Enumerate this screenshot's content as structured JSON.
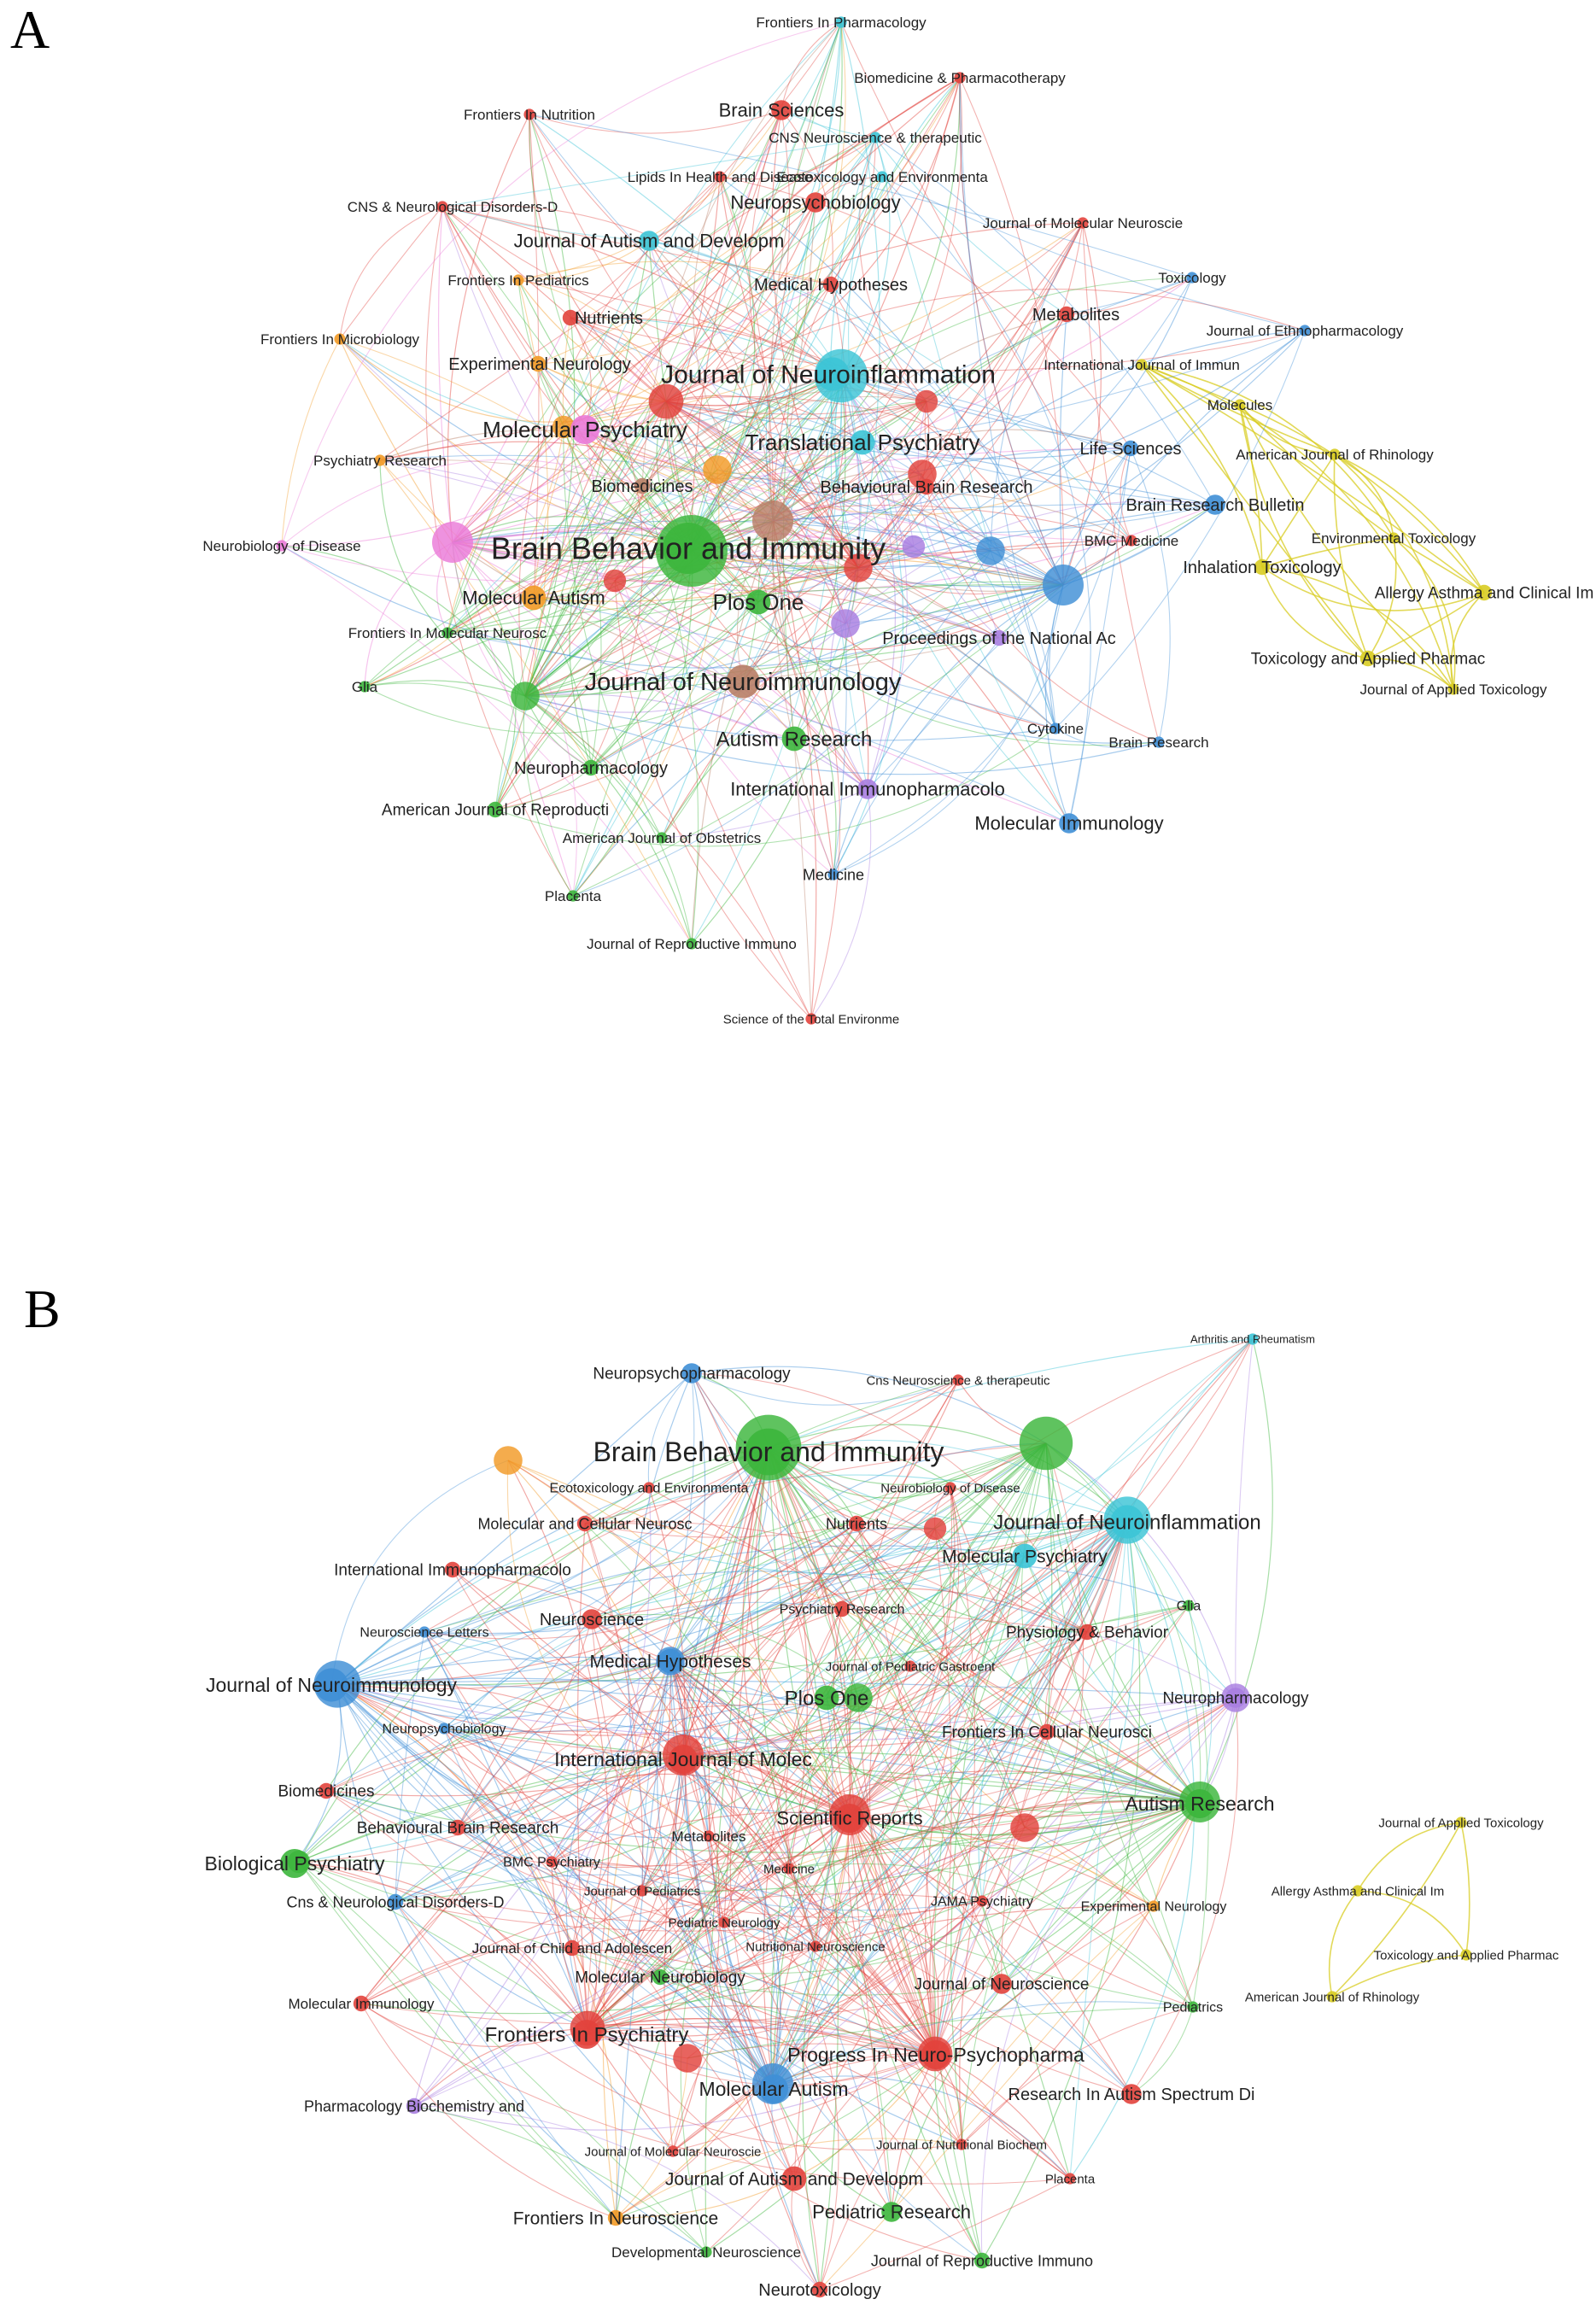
{
  "panels": [
    {
      "letter": "A",
      "nodes": [
        {
          "label": "Frontiers In Pharmacology",
          "c": "cyan",
          "w": 1
        },
        {
          "label": "Biomedicine & Pharmacotherapy",
          "c": "red",
          "w": 1
        },
        {
          "label": "Frontiers In Nutrition",
          "c": "red",
          "w": 1
        },
        {
          "label": "Brain Sciences",
          "c": "red",
          "w": 3
        },
        {
          "label": "CNS Neuroscience & therapeutic",
          "c": "cyan",
          "w": 1
        },
        {
          "label": "Lipids In Health and Disease",
          "c": "red",
          "w": 1
        },
        {
          "label": "Ecotoxicology and Environmenta",
          "c": "cyan",
          "w": 1
        },
        {
          "label": "CNS & Neurological Disorders-D",
          "c": "red",
          "w": 1
        },
        {
          "label": "Neuropsychobiology",
          "c": "red",
          "w": 3
        },
        {
          "label": "Journal of Molecular Neuroscie",
          "c": "red",
          "w": 1
        },
        {
          "label": "Journal of Autism and Developm",
          "c": "cyan",
          "w": 3
        },
        {
          "label": "Frontiers In Pediatrics",
          "c": "orange",
          "w": 1
        },
        {
          "label": "Medical Hypotheses",
          "c": "red",
          "w": 2
        },
        {
          "label": "Toxicology",
          "c": "blue",
          "w": 1
        },
        {
          "label": "Nutrients",
          "c": "red",
          "w": 2
        },
        {
          "label": "Metabolites",
          "c": "red",
          "w": 2
        },
        {
          "label": "Journal of Ethnopharmacology",
          "c": "blue",
          "w": 1
        },
        {
          "label": "Frontiers In Microbiology",
          "c": "orange",
          "w": 1
        },
        {
          "label": "Experimental Neurology",
          "c": "orange",
          "w": 2
        },
        {
          "label": "Journal of Neuroinflammation",
          "c": "cyan",
          "w": 6
        },
        {
          "label": "International Journal of Immun",
          "c": "yellow",
          "w": 1
        },
        {
          "label": "Molecules",
          "c": "yellow",
          "w": 1
        },
        {
          "label": "Molecular Psychiatry",
          "c": "pink",
          "w": 5
        },
        {
          "label": "Translational Psychiatry",
          "c": "cyan",
          "w": 4
        },
        {
          "label": "Life Sciences",
          "c": "blue",
          "w": 2
        },
        {
          "label": "American Journal of Rhinology",
          "c": "yellow",
          "w": 1
        },
        {
          "label": "Psychiatry Research",
          "c": "orange",
          "w": 1
        },
        {
          "label": "Biomedicines",
          "c": "brown",
          "w": 2
        },
        {
          "label": "Behavioural Brain Research",
          "c": "red",
          "w": 2
        },
        {
          "label": "Brain Research Bulletin",
          "c": "blue",
          "w": 3
        },
        {
          "label": "Environmental Toxicology",
          "c": "yellow",
          "w": 1
        },
        {
          "label": "BMC Medicine",
          "c": "red",
          "w": 1
        },
        {
          "label": "Neurobiology of Disease",
          "c": "pink",
          "w": 1
        },
        {
          "label": "Brain Behavior and Immunity",
          "c": "green",
          "w": 10
        },
        {
          "label": "Inhalation Toxicology",
          "c": "yellow",
          "w": 2
        },
        {
          "label": "Molecular Autism",
          "c": "orange",
          "w": 4
        },
        {
          "label": "Plos One",
          "c": "green",
          "w": 4
        },
        {
          "label": "Allergy Asthma and Clinical Im",
          "c": "yellow",
          "w": 2
        },
        {
          "label": "Frontiers In Molecular Neurosc",
          "c": "green",
          "w": 1
        },
        {
          "label": "Proceedings of the National Ac",
          "c": "purple",
          "w": 2
        },
        {
          "label": "Toxicology and Applied Pharmac",
          "c": "yellow",
          "w": 2
        },
        {
          "label": "Glia",
          "c": "green",
          "w": 1
        },
        {
          "label": "Journal of Neuroimmunology",
          "c": "brown",
          "w": 6
        },
        {
          "label": "Journal of Applied Toxicology",
          "c": "yellow",
          "w": 1
        },
        {
          "label": "Cytokine",
          "c": "blue",
          "w": 1
        },
        {
          "label": "Autism Research",
          "c": "green",
          "w": 4
        },
        {
          "label": "Brain Research",
          "c": "blue",
          "w": 1
        },
        {
          "label": "Neuropharmacology",
          "c": "green",
          "w": 2
        },
        {
          "label": "International Immunopharmacolo",
          "c": "purple",
          "w": 3
        },
        {
          "label": "American Journal of Reproducti",
          "c": "green",
          "w": 2
        },
        {
          "label": "Molecular Immunology",
          "c": "blue",
          "w": 3
        },
        {
          "label": "American Journal of Obstetrics",
          "c": "green",
          "w": 1
        },
        {
          "label": "Placenta",
          "c": "green",
          "w": 1
        },
        {
          "label": "Medicine",
          "c": "blue",
          "w": 1
        },
        {
          "label": "Journal of Reproductive Immuno",
          "c": "green",
          "w": 1
        },
        {
          "label": "Science of the Total Environme",
          "c": "red",
          "w": 1
        }
      ],
      "hubs": [
        {
          "c": "green",
          "w": 10
        },
        {
          "c": "cyan",
          "w": 7
        },
        {
          "c": "red",
          "w": 4
        },
        {
          "c": "brown",
          "w": 5
        },
        {
          "c": "pink",
          "w": 5
        },
        {
          "c": "blue",
          "w": 5
        },
        {
          "c": "orange",
          "w": 3
        },
        {
          "c": "purple",
          "w": 3
        },
        {
          "c": "red",
          "w": 3
        },
        {
          "c": "red",
          "w": 3
        },
        {
          "c": "green",
          "w": 3
        },
        {
          "c": "red",
          "w": 2
        },
        {
          "c": "purple",
          "w": 2
        },
        {
          "c": "blue",
          "w": 3
        },
        {
          "c": "red",
          "w": 2
        },
        {
          "c": "orange",
          "w": 2
        }
      ]
    },
    {
      "letter": "B",
      "nodes": [
        {
          "label": "Arthritis and Rheumatism",
          "c": "cyan",
          "w": 1
        },
        {
          "label": "Neuropsychopharmacology",
          "c": "blue",
          "w": 3
        },
        {
          "label": "Cns Neuroscience & therapeutic",
          "c": "red",
          "w": 1
        },
        {
          "label": "Brain Behavior and Immunity",
          "c": "green",
          "w": 9
        },
        {
          "label": "Ecotoxicology and Environmenta",
          "c": "red",
          "w": 1
        },
        {
          "label": "Neurobiology of Disease",
          "c": "red",
          "w": 1
        },
        {
          "label": "Molecular and Cellular Neurosc",
          "c": "red",
          "w": 2
        },
        {
          "label": "Nutrients",
          "c": "red",
          "w": 2
        },
        {
          "label": "Journal of Neuroinflammation",
          "c": "cyan",
          "w": 6
        },
        {
          "label": "Molecular Psychiatry",
          "c": "cyan",
          "w": 4
        },
        {
          "label": "International Immunopharmacolo",
          "c": "red",
          "w": 2
        },
        {
          "label": "Glia",
          "c": "green",
          "w": 1
        },
        {
          "label": "Psychiatry Research",
          "c": "red",
          "w": 2
        },
        {
          "label": "Neuroscience Letters",
          "c": "blue",
          "w": 1
        },
        {
          "label": "Neuroscience",
          "c": "red",
          "w": 3
        },
        {
          "label": "Physiology & Behavior",
          "c": "red",
          "w": 2
        },
        {
          "label": "Medical Hypotheses",
          "c": "blue",
          "w": 4
        },
        {
          "label": "Journal of Pediatric Gastroent",
          "c": "red",
          "w": 1
        },
        {
          "label": "Journal of Neuroimmunology",
          "c": "blue",
          "w": 6
        },
        {
          "label": "Neuropharmacology",
          "c": "purple",
          "w": 3
        },
        {
          "label": "Plos One",
          "c": "green",
          "w": 4
        },
        {
          "label": "Neuropsychobiology",
          "c": "blue",
          "w": 1
        },
        {
          "label": "Frontiers In Cellular Neurosci",
          "c": "red",
          "w": 2
        },
        {
          "label": "International Journal of Molec",
          "c": "red",
          "w": 5
        },
        {
          "label": "Biomedicines",
          "c": "red",
          "w": 2
        },
        {
          "label": "Journal of Applied Toxicology",
          "c": "yellow",
          "w": 1
        },
        {
          "label": "Autism Research",
          "c": "green",
          "w": 5
        },
        {
          "label": "Scientific Reports",
          "c": "red",
          "w": 5
        },
        {
          "label": "Behavioural Brain Research",
          "c": "red",
          "w": 2
        },
        {
          "label": "Metabolites",
          "c": "red",
          "w": 1
        },
        {
          "label": "Biological Psychiatry",
          "c": "green",
          "w": 5
        },
        {
          "label": "BMC Psychiatry",
          "c": "red",
          "w": 1
        },
        {
          "label": "Medicine",
          "c": "red",
          "w": 1
        },
        {
          "label": "Allergy Asthma and Clinical Im",
          "c": "yellow",
          "w": 1
        },
        {
          "label": "Journal of Pediatrics",
          "c": "red",
          "w": 1
        },
        {
          "label": "JAMA Psychiatry",
          "c": "red",
          "w": 1
        },
        {
          "label": "Experimental Neurology",
          "c": "orange",
          "w": 1
        },
        {
          "label": "Cns & Neurological Disorders-D",
          "c": "blue",
          "w": 2
        },
        {
          "label": "Pediatric Neurology",
          "c": "red",
          "w": 1
        },
        {
          "label": "Toxicology and Applied Pharmac",
          "c": "yellow",
          "w": 1
        },
        {
          "label": "Nutritional Neuroscience",
          "c": "red",
          "w": 1
        },
        {
          "label": "Journal of Child and Adolescen",
          "c": "red",
          "w": 2
        },
        {
          "label": "Molecular Neurobiology",
          "c": "green",
          "w": 2
        },
        {
          "label": "Journal of Neuroscience",
          "c": "red",
          "w": 3
        },
        {
          "label": "Pediatrics",
          "c": "green",
          "w": 1
        },
        {
          "label": "American Journal of Rhinology",
          "c": "yellow",
          "w": 1
        },
        {
          "label": "Molecular Immunology",
          "c": "red",
          "w": 2
        },
        {
          "label": "Frontiers In Psychiatry",
          "c": "red",
          "w": 5
        },
        {
          "label": "Progress In Neuro-Psychopharma",
          "c": "red",
          "w": 5
        },
        {
          "label": "Molecular Autism",
          "c": "blue",
          "w": 5
        },
        {
          "label": "Research In Autism Spectrum Di",
          "c": "red",
          "w": 3
        },
        {
          "label": "Pharmacology Biochemistry and",
          "c": "purple",
          "w": 2
        },
        {
          "label": "Journal of Molecular Neuroscie",
          "c": "red",
          "w": 1
        },
        {
          "label": "Journal of Nutritional Biochem",
          "c": "red",
          "w": 1
        },
        {
          "label": "Journal of Autism and Developm",
          "c": "red",
          "w": 4
        },
        {
          "label": "Placenta",
          "c": "red",
          "w": 1
        },
        {
          "label": "Frontiers In Neuroscience",
          "c": "orange",
          "w": 2
        },
        {
          "label": "Pediatric Research",
          "c": "green",
          "w": 3
        },
        {
          "label": "Developmental Neuroscience",
          "c": "green",
          "w": 1
        },
        {
          "label": "Journal of Reproductive Immuno",
          "c": "green",
          "w": 2
        },
        {
          "label": "Neurotoxicology",
          "c": "red",
          "w": 2
        }
      ],
      "hubs": [
        {
          "c": "green",
          "w": 9
        },
        {
          "c": "green",
          "w": 7
        },
        {
          "c": "cyan",
          "w": 6
        },
        {
          "c": "blue",
          "w": 6
        },
        {
          "c": "red",
          "w": 5
        },
        {
          "c": "green",
          "w": 5
        },
        {
          "c": "red",
          "w": 5
        },
        {
          "c": "blue",
          "w": 5
        },
        {
          "c": "red",
          "w": 4
        },
        {
          "c": "red",
          "w": 4
        },
        {
          "c": "purple",
          "w": 3
        },
        {
          "c": "orange",
          "w": 3
        },
        {
          "c": "red",
          "w": 3
        },
        {
          "c": "green",
          "w": 3
        },
        {
          "c": "red",
          "w": 3
        },
        {
          "c": "blue",
          "w": 3
        },
        {
          "c": "red",
          "w": 2
        },
        {
          "c": "green",
          "w": 2
        }
      ]
    }
  ],
  "colors": {
    "red": "#e2423c",
    "green": "#3cb63c",
    "blue": "#3f8fd6",
    "cyan": "#3cc4d6",
    "yellow": "#d8cc22",
    "purple": "#a87ee0",
    "orange": "#f29a26",
    "pink": "#ea7ad8",
    "brown": "#b87e66"
  }
}
